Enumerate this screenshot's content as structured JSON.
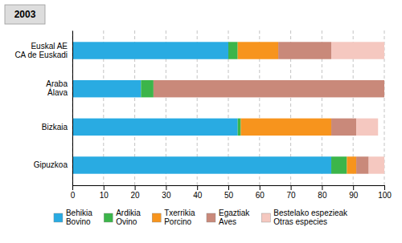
{
  "chart_data": {
    "type": "bar",
    "orientation": "horizontal",
    "stacked": true,
    "title": "2003",
    "categories": [
      "Euskal AE\nCA de Euskadi",
      "Araba\nÁlava",
      "Bizkaia",
      "Gipuzkoa"
    ],
    "series": [
      {
        "name": "Behikia\nBovino",
        "color": "#29ABE2",
        "values": [
          50,
          22,
          53,
          83
        ]
      },
      {
        "name": "Ardikia\nOvino",
        "color": "#3CB54A",
        "values": [
          3,
          4,
          1,
          5
        ]
      },
      {
        "name": "Txerrikia\nPorcino",
        "color": "#F7941D",
        "values": [
          13,
          0,
          29,
          3
        ]
      },
      {
        "name": "Egaztiak\nAves",
        "color": "#C9897A",
        "values": [
          17,
          74,
          8,
          4
        ]
      },
      {
        "name": "Bestelako espezieak\nOtras especies",
        "color": "#F5C8C0",
        "values": [
          17,
          0,
          7,
          5
        ]
      }
    ],
    "xlim": [
      0,
      100
    ],
    "xticks": [
      0,
      10,
      20,
      30,
      40,
      50,
      60,
      70,
      80,
      90,
      100
    ],
    "grid": true,
    "legend": "bottom"
  }
}
